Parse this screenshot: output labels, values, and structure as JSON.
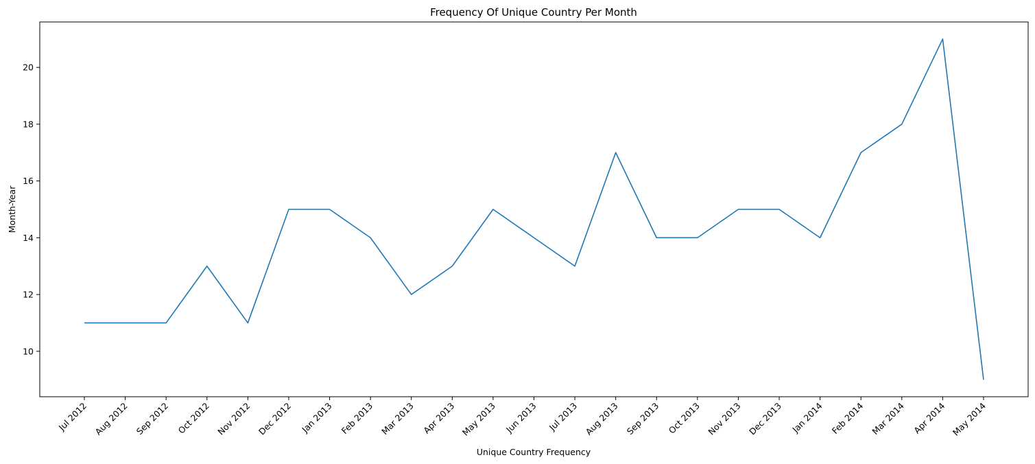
{
  "chart_data": {
    "type": "line",
    "title": "Frequency Of Unique Country Per Month",
    "xlabel": "Unique Country Frequency",
    "ylabel": "Month-Year",
    "categories": [
      "Jul 2012",
      "Aug 2012",
      "Sep 2012",
      "Oct 2012",
      "Nov 2012",
      "Dec 2012",
      "Jan 2013",
      "Feb 2013",
      "Mar 2013",
      "Apr 2013",
      "May 2013",
      "Jun 2013",
      "Jul 2013",
      "Aug 2013",
      "Sep 2013",
      "Oct 2013",
      "Nov 2013",
      "Dec 2013",
      "Jan 2014",
      "Feb 2014",
      "Mar 2014",
      "Apr 2014",
      "May 2014"
    ],
    "series": [
      {
        "values": [
          11,
          11,
          11,
          13,
          11,
          15,
          15,
          14,
          12,
          13,
          15,
          14,
          13,
          17,
          14,
          14,
          15,
          15,
          14,
          17,
          18,
          21,
          9
        ]
      }
    ],
    "ylim": [
      8.4,
      21.6
    ],
    "yticks": [
      10,
      12,
      14,
      16,
      18,
      20
    ],
    "grid": false,
    "line_color": "#1f77b4"
  }
}
